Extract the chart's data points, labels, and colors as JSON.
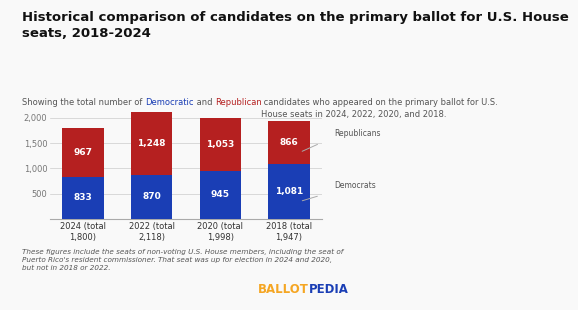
{
  "title": "Historical comparison of candidates on the primary ballot for U.S. House\nseats, 2018-2024",
  "subtitle_parts": [
    "Showing the total number of ",
    "Democratic",
    " and ",
    "Republican",
    " candidates who appeared on the primary ballot for U.S.\nHouse seats in 2024, 2022, 2020, and 2018."
  ],
  "categories": [
    "2024 (total\n1,800)",
    "2022 (total\n2,118)",
    "2020 (total\n1,998)",
    "2018 (total\n1,947)"
  ],
  "democrats": [
    833,
    870,
    945,
    1081
  ],
  "republicans": [
    967,
    1248,
    1053,
    866
  ],
  "dem_color": "#1a3eb5",
  "rep_color": "#b52020",
  "bg_color": "#f9f9f9",
  "ylim": [
    0,
    2300
  ],
  "yticks": [
    500,
    1000,
    1500,
    2000
  ],
  "legend_rep": "Republicans",
  "legend_dem": "Democrats",
  "footnote": "These figures include the seats of non-voting U.S. House members, including the seat of\nPuerto Rico's resident commissioner. That seat was up for election in 2024 and 2020,\nbut not in 2018 or 2022.",
  "ballotpedia_ballot": "BALLOT",
  "ballotpedia_pedia": "PEDIA",
  "ballotpedia_ballot_color": "#f5a623",
  "ballotpedia_pedia_color": "#1a3eb5",
  "title_fontsize": 9.5,
  "subtitle_fontsize": 6.0,
  "bar_label_fontsize": 6.5,
  "axis_label_fontsize": 6.0,
  "footnote_fontsize": 5.2,
  "ballotpedia_fontsize": 8.5
}
